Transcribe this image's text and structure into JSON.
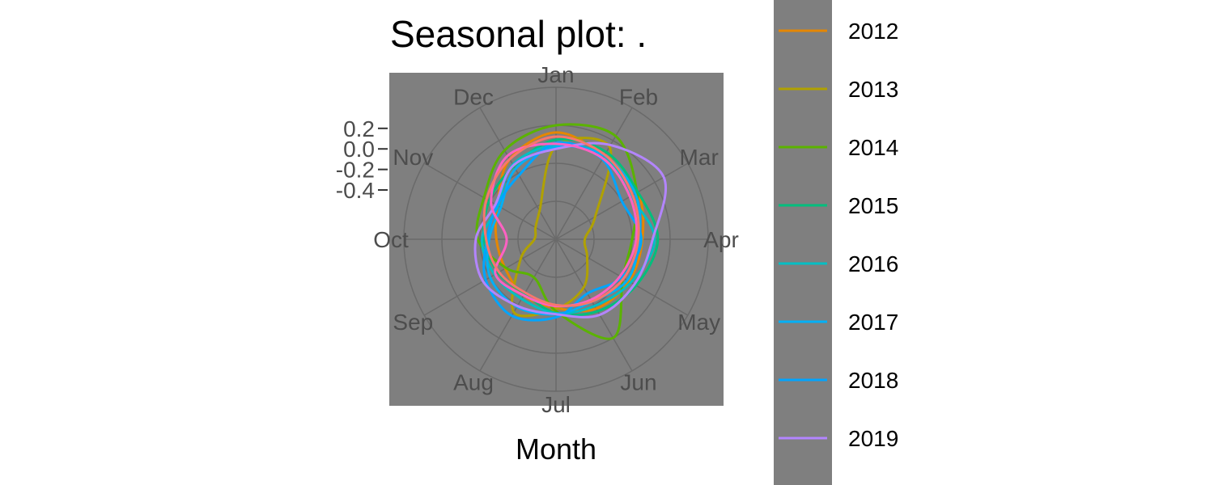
{
  "chart_data": {
    "type": "line",
    "coordinate_system": "polar",
    "title": "Seasonal plot: .",
    "xlabel": "Month",
    "ylabel": "",
    "categories": [
      "Jan",
      "Feb",
      "Mar",
      "Apr",
      "May",
      "Jun",
      "Jul",
      "Aug",
      "Sep",
      "Oct",
      "Nov",
      "Dec"
    ],
    "y_ticks": [
      0.2,
      0.0,
      -0.2,
      -0.4
    ],
    "y_tick_labels": [
      "0.2",
      "0.0",
      "-0.2",
      "-0.4"
    ],
    "ylim": [
      -0.88,
      0.6
    ],
    "grid": true,
    "legend_position": "right",
    "panel_color": "#7f7f7f",
    "grid_color": "#6a6a6a",
    "series": [
      {
        "name": "2012",
        "color": "#E58700",
        "values": [
          0.16,
          0.06,
          0.04,
          -0.04,
          -0.06,
          -0.1,
          -0.21,
          -0.25,
          -0.31,
          -0.3,
          -0.22,
          0.02
        ]
      },
      {
        "name": "2013",
        "color": "#B0A100",
        "values": [
          0.03,
          0.16,
          -0.44,
          -0.6,
          -0.53,
          -0.34,
          -0.2,
          -0.06,
          -0.48,
          -0.67,
          -0.65,
          -0.56
        ]
      },
      {
        "name": "2014",
        "color": "#5BB300",
        "values": [
          0.23,
          0.28,
          0.03,
          -0.14,
          -0.13,
          0.23,
          -0.18,
          -0.45,
          -0.32,
          -0.12,
          -0.07,
          0.12
        ]
      },
      {
        "name": "2015",
        "color": "#00BF7D",
        "values": [
          0.09,
          0.1,
          0.04,
          0.11,
          0.02,
          -0.07,
          -0.16,
          -0.27,
          -0.23,
          -0.18,
          -0.13,
          -0.06
        ]
      },
      {
        "name": "2016",
        "color": "#00BFC4",
        "values": [
          0.04,
          0.06,
          -0.04,
          0.08,
          -0.04,
          -0.13,
          -0.16,
          -0.21,
          -0.19,
          -0.16,
          -0.23,
          -0.04
        ]
      },
      {
        "name": "2017",
        "color": "#00B0F6",
        "values": [
          0.02,
          0.06,
          0.01,
          -0.07,
          -0.08,
          -0.18,
          -0.15,
          -0.12,
          -0.14,
          -0.23,
          -0.26,
          -0.09
        ]
      },
      {
        "name": "2018",
        "color": "#00A5FF",
        "values": [
          0.06,
          0.02,
          -0.14,
          -0.05,
          -0.14,
          -0.27,
          -0.12,
          -0.02,
          -0.09,
          -0.21,
          -0.22,
          -0.16
        ]
      },
      {
        "name": "2019",
        "color": "#B385FF",
        "values": [
          0.0,
          0.18,
          0.33,
          0.06,
          0.0,
          -0.03,
          -0.15,
          -0.13,
          -0.06,
          -0.1,
          -0.2,
          -0.05
        ]
      },
      {
        "name": "",
        "color": "#FF61C3",
        "values": [
          0.05,
          0.03,
          -0.05,
          -0.1,
          -0.16,
          -0.2,
          -0.23,
          -0.25,
          -0.2,
          -0.4,
          -0.15,
          0.06
        ]
      },
      {
        "name": "",
        "color": "#F8766D",
        "values": [
          0.12,
          0.07,
          -0.02,
          -0.08,
          -0.12,
          -0.18,
          -0.24,
          -0.28,
          -0.24,
          -0.2,
          -0.1,
          0.02
        ]
      }
    ]
  }
}
